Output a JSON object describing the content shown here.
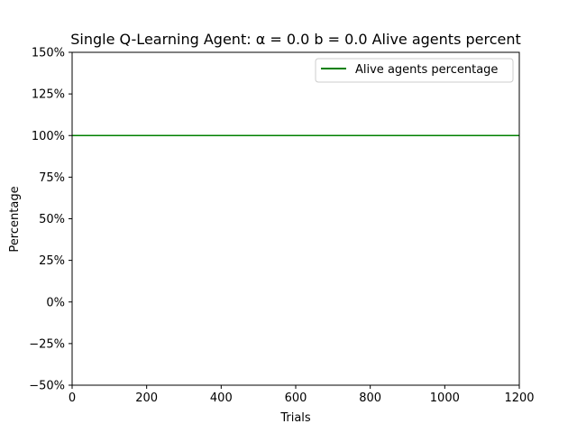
{
  "chart_data": {
    "type": "line",
    "title": "Single Q-Learning Agent: α = 0.0 b = 0.0 Alive agents percent",
    "xlabel": "Trials",
    "ylabel": "Percentage",
    "xlim": [
      0,
      1200
    ],
    "ylim": [
      -50,
      150
    ],
    "x_ticks": [
      0,
      200,
      400,
      600,
      800,
      1000,
      1200
    ],
    "y_ticks": [
      -50,
      -25,
      0,
      25,
      50,
      75,
      100,
      125,
      150
    ],
    "x_tick_labels": [
      "0",
      "200",
      "400",
      "600",
      "800",
      "1000",
      "1200"
    ],
    "y_tick_labels": [
      "−50%",
      "−25%",
      "0%",
      "25%",
      "50%",
      "75%",
      "100%",
      "125%",
      "150%"
    ],
    "grid": false,
    "legend_position": "top-right",
    "series": [
      {
        "name": "Alive agents percentage",
        "color": "#008000",
        "x": [
          0,
          1200
        ],
        "values": [
          100,
          100
        ]
      }
    ]
  }
}
